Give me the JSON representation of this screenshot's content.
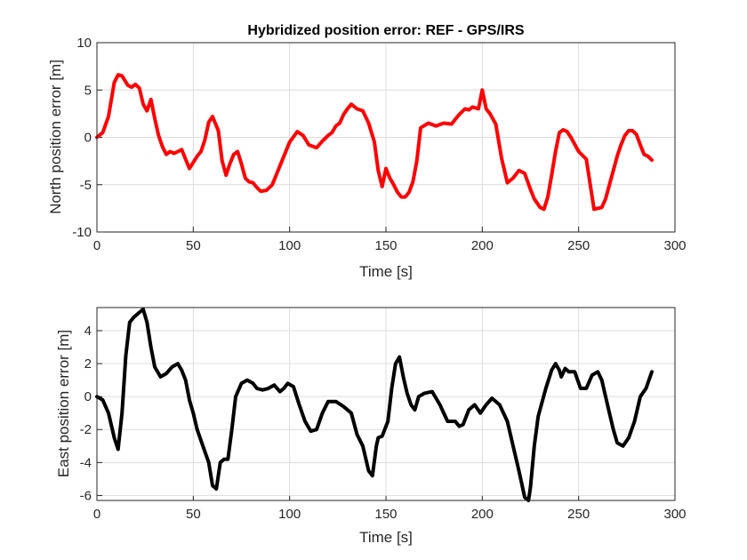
{
  "chart_data": [
    {
      "type": "line",
      "title": "Hybridized position error: REF - GPS/IRS",
      "xlabel": "Time [s]",
      "ylabel": "North position error [m]",
      "xlim": [
        0,
        300
      ],
      "ylim": [
        -10,
        10
      ],
      "xticks": [
        "0",
        "50",
        "100",
        "150",
        "200",
        "250",
        "300"
      ],
      "yticks": [
        "-10",
        "-5",
        "0",
        "5",
        "10"
      ],
      "grid": true,
      "series": [
        {
          "color": "#ff0000",
          "x": [
            0,
            3,
            6,
            9,
            11,
            13,
            16,
            18,
            20,
            22,
            24,
            26,
            28,
            30,
            32,
            34,
            36,
            38,
            40,
            42,
            44,
            48,
            52,
            54,
            56,
            58,
            60,
            63,
            65,
            67,
            69,
            71,
            73,
            75,
            77,
            79,
            81,
            83,
            85,
            88,
            91,
            94,
            97,
            100,
            104,
            107,
            110,
            114,
            117,
            120,
            122,
            124,
            126,
            128,
            130,
            132,
            135,
            138,
            141,
            144,
            146,
            148,
            150,
            152,
            154,
            156,
            158,
            160,
            162,
            164,
            166,
            168,
            172,
            176,
            180,
            184,
            188,
            191,
            193,
            195,
            198,
            200,
            202,
            204,
            207,
            210,
            213,
            216,
            219,
            222,
            225,
            227,
            230,
            232,
            234,
            236,
            238,
            240,
            242,
            244,
            246,
            250,
            254,
            258,
            262,
            264,
            266,
            268,
            270,
            272,
            274,
            276,
            278,
            280,
            282,
            284,
            286,
            288
          ],
          "y": [
            0,
            0.5,
            2.2,
            5.8,
            6.6,
            6.5,
            5.5,
            5.3,
            5.6,
            5.2,
            3.5,
            2.8,
            4.0,
            2.0,
            0.2,
            -1.0,
            -1.8,
            -1.5,
            -1.7,
            -1.5,
            -1.3,
            -3.3,
            -2.0,
            -1.5,
            -0.3,
            1.6,
            2.2,
            0.7,
            -2.5,
            -4.0,
            -2.8,
            -1.8,
            -1.5,
            -2.8,
            -4.3,
            -4.7,
            -4.8,
            -5.3,
            -5.7,
            -5.6,
            -5.0,
            -3.5,
            -2.0,
            -0.5,
            0.6,
            0.2,
            -0.8,
            -1.1,
            -0.4,
            0.2,
            0.5,
            1.2,
            1.5,
            2.4,
            3.0,
            3.5,
            3.0,
            2.8,
            1.5,
            -0.5,
            -3.5,
            -5.2,
            -3.3,
            -4.3,
            -5.0,
            -5.8,
            -6.3,
            -6.3,
            -5.8,
            -4.7,
            -2.5,
            1.0,
            1.5,
            1.2,
            1.5,
            1.4,
            2.4,
            3.0,
            2.9,
            3.2,
            3.0,
            5.0,
            3.0,
            2.5,
            1.4,
            -2.2,
            -4.8,
            -4.3,
            -3.5,
            -3.8,
            -5.5,
            -6.5,
            -7.4,
            -7.6,
            -6.3,
            -4.0,
            -1.5,
            0.5,
            0.8,
            0.6,
            0.0,
            -1.5,
            -2.3,
            -7.6,
            -7.4,
            -6.5,
            -5.0,
            -3.5,
            -2.0,
            -0.8,
            0.2,
            0.7,
            0.7,
            0.3,
            -0.8,
            -1.8,
            -2.0,
            -2.4
          ]
        }
      ]
    },
    {
      "type": "line",
      "title": "",
      "xlabel": "Time [s]",
      "ylabel": "East position error [m]",
      "xlim": [
        0,
        300
      ],
      "ylim": [
        -6.3,
        5.4
      ],
      "xticks": [
        "0",
        "50",
        "100",
        "150",
        "200",
        "250",
        "300"
      ],
      "yticks": [
        "-6",
        "-4",
        "-2",
        "0",
        "2",
        "4"
      ],
      "grid": true,
      "series": [
        {
          "color": "#000000",
          "x": [
            0,
            3,
            6,
            9,
            11,
            13,
            15,
            17,
            19,
            21,
            24,
            26,
            28,
            30,
            33,
            36,
            39,
            42,
            44,
            46,
            48,
            50,
            52,
            55,
            58,
            60,
            62,
            64,
            66,
            68,
            70,
            72,
            75,
            78,
            81,
            83,
            86,
            89,
            92,
            95,
            97,
            99,
            102,
            105,
            108,
            111,
            114,
            117,
            120,
            124,
            128,
            132,
            135,
            138,
            141,
            143,
            145,
            146,
            148,
            151,
            153,
            155,
            157,
            159,
            161,
            163,
            165,
            167,
            170,
            174,
            178,
            182,
            186,
            188,
            190,
            193,
            196,
            199,
            202,
            205,
            209,
            213,
            216,
            219,
            222,
            224,
            225,
            227,
            229,
            233,
            236,
            238,
            240,
            241,
            243,
            245,
            248,
            251,
            254,
            257,
            260,
            262,
            264,
            266,
            268,
            270,
            273,
            276,
            279,
            282,
            285,
            288
          ],
          "y": [
            0,
            -0.2,
            -1.0,
            -2.5,
            -3.2,
            -1.0,
            2.5,
            4.5,
            4.8,
            5.0,
            5.3,
            4.5,
            3.0,
            1.8,
            1.2,
            1.4,
            1.8,
            2.0,
            1.6,
            1.0,
            -0.2,
            -1.0,
            -2.0,
            -3.0,
            -4.0,
            -5.4,
            -5.6,
            -4.0,
            -3.8,
            -3.8,
            -2.0,
            0.0,
            0.8,
            1.0,
            0.8,
            0.5,
            0.4,
            0.5,
            0.7,
            0.3,
            0.5,
            0.8,
            0.6,
            -0.5,
            -1.5,
            -2.1,
            -2.0,
            -1.0,
            -0.3,
            -0.3,
            -0.6,
            -1.0,
            -2.3,
            -3.0,
            -4.5,
            -4.8,
            -3.0,
            -2.5,
            -2.4,
            -1.5,
            0.5,
            2.0,
            2.4,
            1.2,
            0.2,
            -0.5,
            -0.8,
            0.0,
            0.2,
            0.3,
            -0.5,
            -1.5,
            -1.5,
            -1.8,
            -1.7,
            -0.8,
            -0.5,
            -1.0,
            -0.5,
            -0.1,
            -0.5,
            -1.5,
            -3.0,
            -4.5,
            -6.1,
            -6.3,
            -5.5,
            -3.0,
            -1.2,
            0.5,
            1.6,
            2.0,
            1.6,
            1.2,
            1.7,
            1.5,
            1.5,
            0.5,
            0.5,
            1.3,
            1.5,
            1.0,
            0.0,
            -1.0,
            -2.0,
            -2.8,
            -3.0,
            -2.5,
            -1.5,
            0.0,
            0.5,
            1.5
          ]
        }
      ]
    }
  ]
}
